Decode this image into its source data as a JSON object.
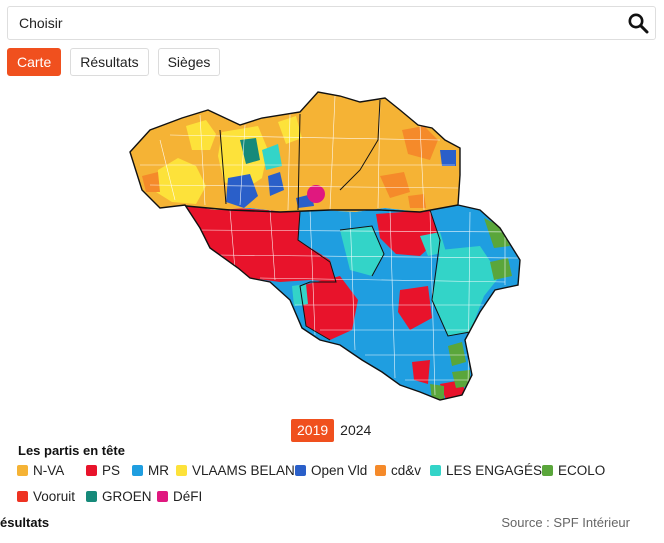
{
  "search": {
    "placeholder": "Choisir",
    "icon": "search-icon"
  },
  "tabs": [
    {
      "label": "Carte",
      "active": true
    },
    {
      "label": "Résultats",
      "active": false
    },
    {
      "label": "Sièges",
      "active": false
    }
  ],
  "years": [
    {
      "label": "2019",
      "active": true
    },
    {
      "label": "2024",
      "active": false
    }
  ],
  "legend": {
    "title": "Les partis en tête",
    "items": [
      {
        "label": "N-VA",
        "color": "#f5b335"
      },
      {
        "label": "PS",
        "color": "#e8132b"
      },
      {
        "label": "MR",
        "color": "#1f9ee0"
      },
      {
        "label": "VLAAMS BELANG",
        "color": "#fde23a"
      },
      {
        "label": "Open Vld",
        "color": "#2a5fc9"
      },
      {
        "label": "cd&v",
        "color": "#f58a2a"
      },
      {
        "label": "LES ENGAGÉS",
        "color": "#33d4c8"
      },
      {
        "label": "ECOLO",
        "color": "#5aa63b"
      },
      {
        "label": "Vooruit",
        "color": "#ee3322"
      },
      {
        "label": "GROEN",
        "color": "#168a7a"
      },
      {
        "label": "DéFI",
        "color": "#e0187f"
      }
    ]
  },
  "footer": {
    "left": "ésultats",
    "right": "Source : SPF Intérieur"
  }
}
